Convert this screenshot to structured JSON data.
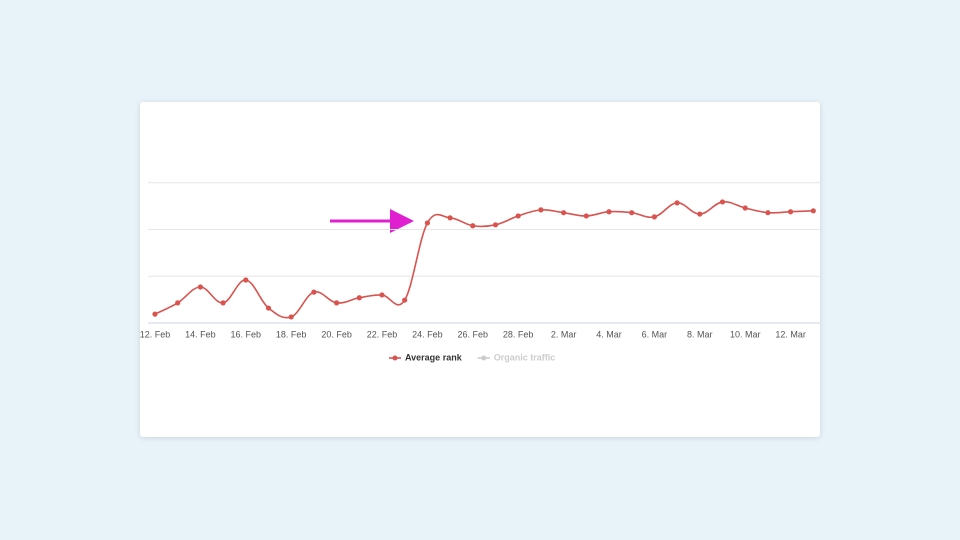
{
  "chart_data": {
    "type": "line",
    "categories": [
      "12. Feb",
      null,
      "14. Feb",
      null,
      "16. Feb",
      null,
      "18. Feb",
      null,
      "20. Feb",
      null,
      "22. Feb",
      null,
      "24. Feb",
      null,
      "26. Feb",
      null,
      "28. Feb",
      null,
      "2. Mar",
      null,
      "4. Mar",
      null,
      "6. Mar",
      null,
      "8. Mar",
      null,
      "10. Mar",
      null,
      "12. Mar",
      null
    ],
    "series": [
      {
        "name": "Average rank",
        "color": "#d9534f",
        "values": [
          0.19,
          0.43,
          0.77,
          0.43,
          0.92,
          0.32,
          0.13,
          0.66,
          0.43,
          0.54,
          0.6,
          0.49,
          2.14,
          2.25,
          2.08,
          2.1,
          2.29,
          2.42,
          2.36,
          2.29,
          2.38,
          2.36,
          2.27,
          2.57,
          2.33,
          2.59,
          2.46,
          2.36,
          2.38,
          2.4
        ]
      }
    ],
    "inactive_series": [
      {
        "name": "Organic traffic",
        "color": "#cccccc"
      }
    ],
    "ylim": [
      0,
      4
    ],
    "yticks": [
      0,
      1,
      2,
      3
    ],
    "grid": true
  }
}
